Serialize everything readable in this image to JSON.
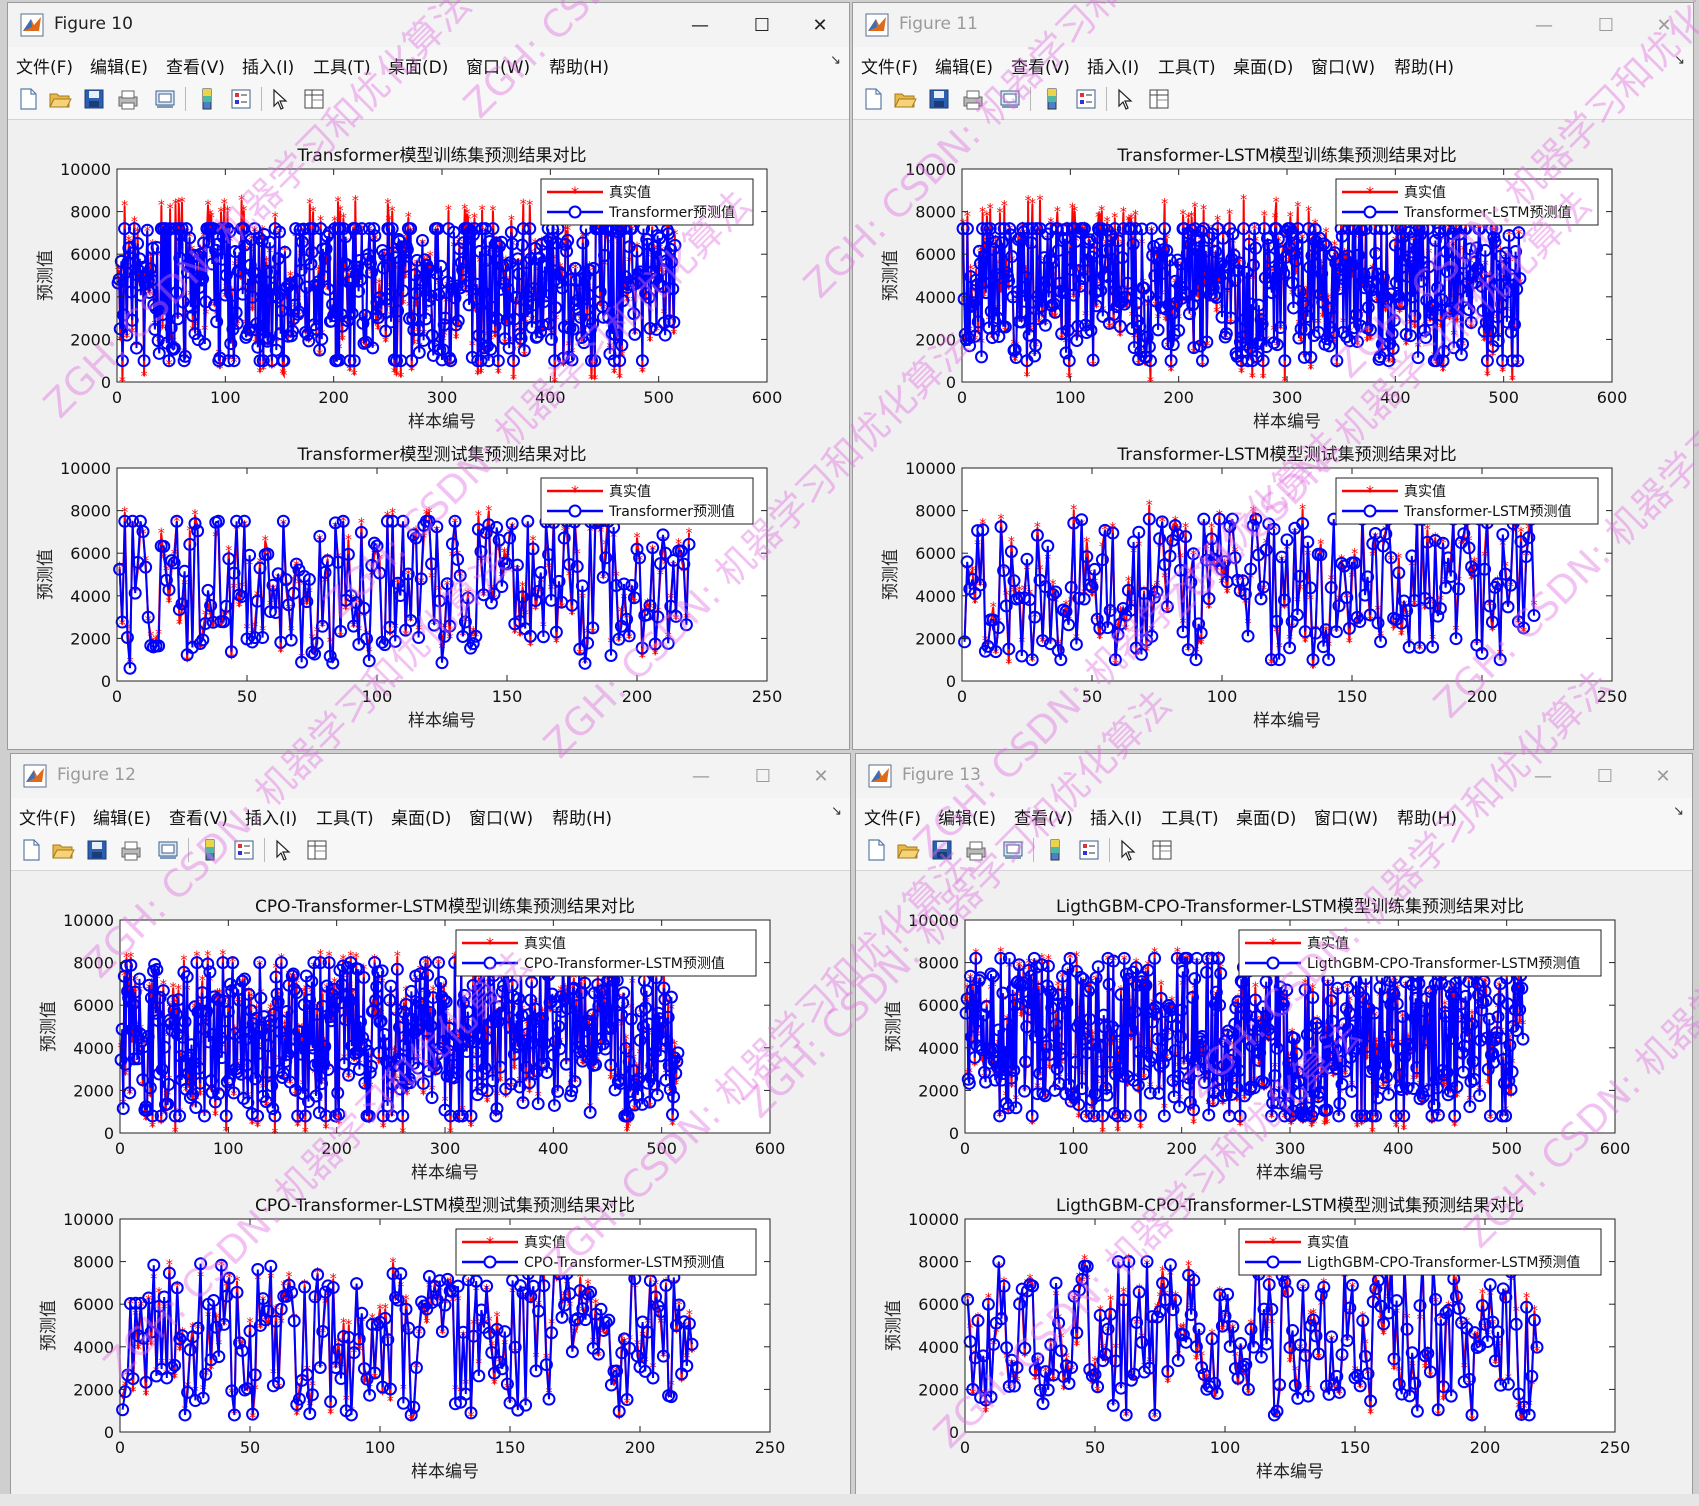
{
  "colors": {
    "actual": "#ff0000",
    "predicted": "#0000ff"
  },
  "menu_items": [
    "文件(F)",
    "编辑(E)",
    "查看(V)",
    "插入(I)",
    "工具(T)",
    "桌面(D)",
    "窗口(W)",
    "帮助(H)"
  ],
  "toolbar_icons": [
    "new-figure-icon",
    "open-file-icon",
    "save-icon",
    "print-icon",
    "print-preview-icon",
    "colorbar-icon",
    "legend-icon",
    "pointer-icon",
    "property-editor-icon"
  ],
  "window_controls": {
    "minimize": "—",
    "maximize": "☐",
    "close": "✕"
  },
  "watermark": [
    "ZGH: CSDN: 机器学习和优化算法"
  ],
  "windows": [
    {
      "title": "Figure 10",
      "axes": [
        {
          "title": "Transformer模型训练集预测结果对比",
          "xlabel": "样本编号",
          "ylabel": "预测值",
          "xticks": [
            "0",
            "100",
            "200",
            "300",
            "400",
            "500",
            "600"
          ],
          "yticks": [
            "0",
            "2000",
            "4000",
            "6000",
            "8000",
            "10000"
          ],
          "legend": [
            "真实值",
            "Transformer预测值"
          ]
        },
        {
          "title": "Transformer模型测试集预测结果对比",
          "xlabel": "样本编号",
          "ylabel": "预测值",
          "xticks": [
            "0",
            "50",
            "100",
            "150",
            "200",
            "250"
          ],
          "yticks": [
            "0",
            "2000",
            "4000",
            "6000",
            "8000",
            "10000"
          ],
          "legend": [
            "真实值",
            "Transformer预测值"
          ]
        }
      ]
    },
    {
      "title": "Figure 11",
      "axes": [
        {
          "title": "Transformer-LSTM模型训练集预测结果对比",
          "xlabel": "样本编号",
          "ylabel": "预测值",
          "xticks": [
            "0",
            "100",
            "200",
            "300",
            "400",
            "500",
            "600"
          ],
          "yticks": [
            "0",
            "2000",
            "4000",
            "6000",
            "8000",
            "10000"
          ],
          "legend": [
            "真实值",
            "Transformer-LSTM预测值"
          ]
        },
        {
          "title": "Transformer-LSTM模型测试集预测结果对比",
          "xlabel": "样本编号",
          "ylabel": "预测值",
          "xticks": [
            "0",
            "50",
            "100",
            "150",
            "200",
            "250"
          ],
          "yticks": [
            "0",
            "2000",
            "4000",
            "6000",
            "8000",
            "10000"
          ],
          "legend": [
            "真实值",
            "Transformer-LSTM预测值"
          ]
        }
      ]
    },
    {
      "title": "Figure 12",
      "axes": [
        {
          "title": "CPO-Transformer-LSTM模型训练集预测结果对比",
          "xlabel": "样本编号",
          "ylabel": "预测值",
          "xticks": [
            "0",
            "100",
            "200",
            "300",
            "400",
            "500",
            "600"
          ],
          "yticks": [
            "0",
            "2000",
            "4000",
            "6000",
            "8000",
            "10000"
          ],
          "legend": [
            "真实值",
            "CPO-Transformer-LSTM预测值"
          ]
        },
        {
          "title": "CPO-Transformer-LSTM模型测试集预测结果对比",
          "xlabel": "样本编号",
          "ylabel": "预测值",
          "xticks": [
            "0",
            "50",
            "100",
            "150",
            "200",
            "250"
          ],
          "yticks": [
            "0",
            "2000",
            "4000",
            "6000",
            "8000",
            "10000"
          ],
          "legend": [
            "真实值",
            "CPO-Transformer-LSTM预测值"
          ]
        }
      ]
    },
    {
      "title": "Figure 13",
      "axes": [
        {
          "title": "LigthGBM-CPO-Transformer-LSTM模型训练集预测结果对比",
          "xlabel": "样本编号",
          "ylabel": "预测值",
          "xticks": [
            "0",
            "100",
            "200",
            "300",
            "400",
            "500",
            "600"
          ],
          "yticks": [
            "0",
            "2000",
            "4000",
            "6000",
            "8000",
            "10000"
          ],
          "legend": [
            "真实值",
            "LigthGBM-CPO-Transformer-LSTM预测值"
          ]
        },
        {
          "title": "LigthGBM-CPO-Transformer-LSTM模型测试集预测结果对比",
          "xlabel": "样本编号",
          "ylabel": "预测值",
          "xticks": [
            "0",
            "50",
            "100",
            "150",
            "200",
            "250"
          ],
          "yticks": [
            "0",
            "2000",
            "4000",
            "6000",
            "8000",
            "10000"
          ],
          "legend": [
            "真实值",
            "LigthGBM-CPO-Transformer-LSTM预测值"
          ]
        }
      ]
    }
  ],
  "chart_data": [
    {
      "type": "line",
      "figure": "Figure 10",
      "title": "Transformer模型训练集预测结果对比",
      "xlabel": "样本编号",
      "ylabel": "预测值",
      "xlim": [
        0,
        600
      ],
      "ylim": [
        0,
        10000
      ],
      "n": 515,
      "series": [
        {
          "name": "真实值",
          "range": [
            0,
            8600
          ]
        },
        {
          "name": "Transformer预测值",
          "range": [
            1000,
            7200
          ]
        }
      ],
      "legend": "top-right"
    },
    {
      "type": "line",
      "figure": "Figure 10",
      "title": "Transformer模型测试集预测结果对比",
      "xlabel": "样本编号",
      "ylabel": "预测值",
      "xlim": [
        0,
        250
      ],
      "ylim": [
        0,
        10000
      ],
      "n": 220,
      "series": [
        {
          "name": "真实值",
          "range": [
            800,
            8200
          ]
        },
        {
          "name": "Transformer预测值",
          "range": [
            600,
            7500
          ]
        }
      ],
      "legend": "top-right"
    },
    {
      "type": "line",
      "figure": "Figure 11",
      "title": "Transformer-LSTM模型训练集预测结果对比",
      "xlabel": "样本编号",
      "ylabel": "预测值",
      "xlim": [
        0,
        600
      ],
      "ylim": [
        0,
        10000
      ],
      "n": 515,
      "series": [
        {
          "name": "真实值",
          "range": [
            0,
            8600
          ]
        },
        {
          "name": "Transformer-LSTM预测值",
          "range": [
            1000,
            7200
          ]
        }
      ],
      "legend": "top-right"
    },
    {
      "type": "line",
      "figure": "Figure 11",
      "title": "Transformer-LSTM模型测试集预测结果对比",
      "xlabel": "样本编号",
      "ylabel": "预测值",
      "xlim": [
        0,
        250
      ],
      "ylim": [
        0,
        10000
      ],
      "n": 220,
      "series": [
        {
          "name": "真实值",
          "range": [
            500,
            8300
          ]
        },
        {
          "name": "Transformer-LSTM预测值",
          "range": [
            1000,
            7600
          ]
        }
      ],
      "legend": "top-right"
    },
    {
      "type": "line",
      "figure": "Figure 12",
      "title": "CPO-Transformer-LSTM模型训练集预测结果对比",
      "xlabel": "样本编号",
      "ylabel": "预测值",
      "xlim": [
        0,
        600
      ],
      "ylim": [
        0,
        10000
      ],
      "n": 515,
      "series": [
        {
          "name": "真实值",
          "range": [
            0,
            8400
          ]
        },
        {
          "name": "CPO-Transformer-LSTM预测值",
          "range": [
            800,
            8000
          ]
        }
      ],
      "legend": "top-right"
    },
    {
      "type": "line",
      "figure": "Figure 12",
      "title": "CPO-Transformer-LSTM模型测试集预测结果对比",
      "xlabel": "样本编号",
      "ylabel": "预测值",
      "xlim": [
        0,
        250
      ],
      "ylim": [
        0,
        10000
      ],
      "n": 220,
      "series": [
        {
          "name": "真实值",
          "range": [
            500,
            8000
          ]
        },
        {
          "name": "CPO-Transformer-LSTM预测值",
          "range": [
            800,
            7900
          ]
        }
      ],
      "legend": "top-right"
    },
    {
      "type": "line",
      "figure": "Figure 13",
      "title": "LigthGBM-CPO-Transformer-LSTM模型训练集预测结果对比",
      "xlabel": "样本编号",
      "ylabel": "预测值",
      "xlim": [
        0,
        600
      ],
      "ylim": [
        0,
        10000
      ],
      "n": 515,
      "series": [
        {
          "name": "真实值",
          "range": [
            0,
            8500
          ]
        },
        {
          "name": "LigthGBM-CPO-Transformer-LSTM预测值",
          "range": [
            800,
            8200
          ]
        }
      ],
      "legend": "top-right"
    },
    {
      "type": "line",
      "figure": "Figure 13",
      "title": "LigthGBM-CPO-Transformer-LSTM模型测试集预测结果对比",
      "xlabel": "样本编号",
      "ylabel": "预测值",
      "xlim": [
        0,
        250
      ],
      "ylim": [
        0,
        10000
      ],
      "n": 220,
      "series": [
        {
          "name": "真实值",
          "range": [
            500,
            8200
          ]
        },
        {
          "name": "LigthGBM-CPO-Transformer-LSTM预测值",
          "range": [
            800,
            8000
          ]
        }
      ],
      "legend": "top-right"
    }
  ]
}
